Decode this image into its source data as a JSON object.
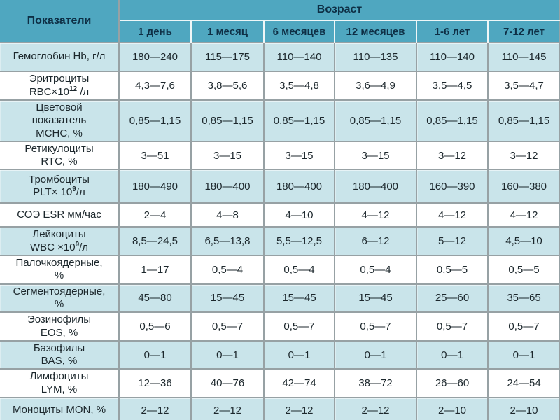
{
  "colors": {
    "header_teal": "#4FA7C0",
    "header_text": "#0E2F45",
    "row_tint": "#C9E4EA",
    "row_plain": "#FFFFFF",
    "grid": "#97A1A4",
    "text": "#1C272C"
  },
  "table": {
    "header": {
      "indicators_label": "Показатели",
      "age_label": "Возраст",
      "age_columns": [
        "1 день",
        "1 месяц",
        "6 месяцев",
        "12 месяцев",
        "1-6 лет",
        "7-12 лет"
      ]
    },
    "rows": [
      {
        "label_lines": [
          [
            {
              "t": "Гемоглобин Hb, г/л"
            }
          ]
        ],
        "values": [
          "180—240",
          "115—175",
          "110—140",
          "110—135",
          "110—140",
          "110—145"
        ]
      },
      {
        "label_lines": [
          [
            {
              "t": "Эритроциты"
            }
          ],
          [
            {
              "t": "RBC×10"
            },
            {
              "t": "12",
              "sup": true
            },
            {
              "t": " /л"
            }
          ]
        ],
        "values": [
          "4,3—7,6",
          "3,8—5,6",
          "3,5—4,8",
          "3,6—4,9",
          "3,5—4,5",
          "3,5—4,7"
        ]
      },
      {
        "label_lines": [
          [
            {
              "t": "Цветовой"
            }
          ],
          [
            {
              "t": "показатель"
            }
          ],
          [
            {
              "t": "МСНС, %"
            }
          ]
        ],
        "values": [
          "0,85—1,15",
          "0,85—1,15",
          "0,85—1,15",
          "0,85—1,15",
          "0,85—1,15",
          "0,85—1,15"
        ]
      },
      {
        "label_lines": [
          [
            {
              "t": "Ретикулоциты"
            }
          ],
          [
            {
              "t": "RTC, %"
            }
          ]
        ],
        "values": [
          "3—51",
          "3—15",
          "3—15",
          "3—15",
          "3—12",
          "3—12"
        ]
      },
      {
        "label_lines": [
          [
            {
              "t": "Тромбоциты"
            }
          ],
          [
            {
              "t": "PLT× 10"
            },
            {
              "t": "9",
              "sup": true
            },
            {
              "t": "/л"
            }
          ]
        ],
        "values": [
          "180—490",
          "180—400",
          "180—400",
          "180—400",
          "160—390",
          "160—380"
        ]
      },
      {
        "label_lines": [
          [
            {
              "t": "СОЭ ESR мм/час"
            }
          ]
        ],
        "values": [
          "2—4",
          "4—8",
          "4—10",
          "4—12",
          "4—12",
          "4—12"
        ]
      },
      {
        "label_lines": [
          [
            {
              "t": "Лейкоциты"
            }
          ],
          [
            {
              "t": "WBC ×10"
            },
            {
              "t": "9",
              "sup": true
            },
            {
              "t": "/л"
            }
          ]
        ],
        "values": [
          "8,5—24,5",
          "6,5—13,8",
          "5,5—12,5",
          "6—12",
          "5—12",
          "4,5—10"
        ]
      },
      {
        "label_lines": [
          [
            {
              "t": "Палочкоядерные,"
            }
          ],
          [
            {
              "t": "%"
            }
          ]
        ],
        "values": [
          "1—17",
          "0,5—4",
          "0,5—4",
          "0,5—4",
          "0,5—5",
          "0,5—5"
        ]
      },
      {
        "label_lines": [
          [
            {
              "t": "Сегментоядерные,"
            }
          ],
          [
            {
              "t": "%"
            }
          ]
        ],
        "values": [
          "45—80",
          "15—45",
          "15—45",
          "15—45",
          "25—60",
          "35—65"
        ]
      },
      {
        "label_lines": [
          [
            {
              "t": "Эозинофилы"
            }
          ],
          [
            {
              "t": "EOS, %"
            }
          ]
        ],
        "values": [
          "0,5—6",
          "0,5—7",
          "0,5—7",
          "0,5—7",
          "0,5—7",
          "0,5—7"
        ]
      },
      {
        "label_lines": [
          [
            {
              "t": "Базофилы"
            }
          ],
          [
            {
              "t": "BAS, %"
            }
          ]
        ],
        "values": [
          "0—1",
          "0—1",
          "0—1",
          "0—1",
          "0—1",
          "0—1"
        ]
      },
      {
        "label_lines": [
          [
            {
              "t": "Лимфоциты"
            }
          ],
          [
            {
              "t": "LYM, %"
            }
          ]
        ],
        "values": [
          "12—36",
          "40—76",
          "42—74",
          "38—72",
          "26—60",
          "24—54"
        ]
      },
      {
        "label_lines": [
          [
            {
              "t": "Моноциты MON, %"
            }
          ]
        ],
        "values": [
          "2—12",
          "2—12",
          "2—12",
          "2—12",
          "2—10",
          "2—10"
        ]
      }
    ]
  }
}
